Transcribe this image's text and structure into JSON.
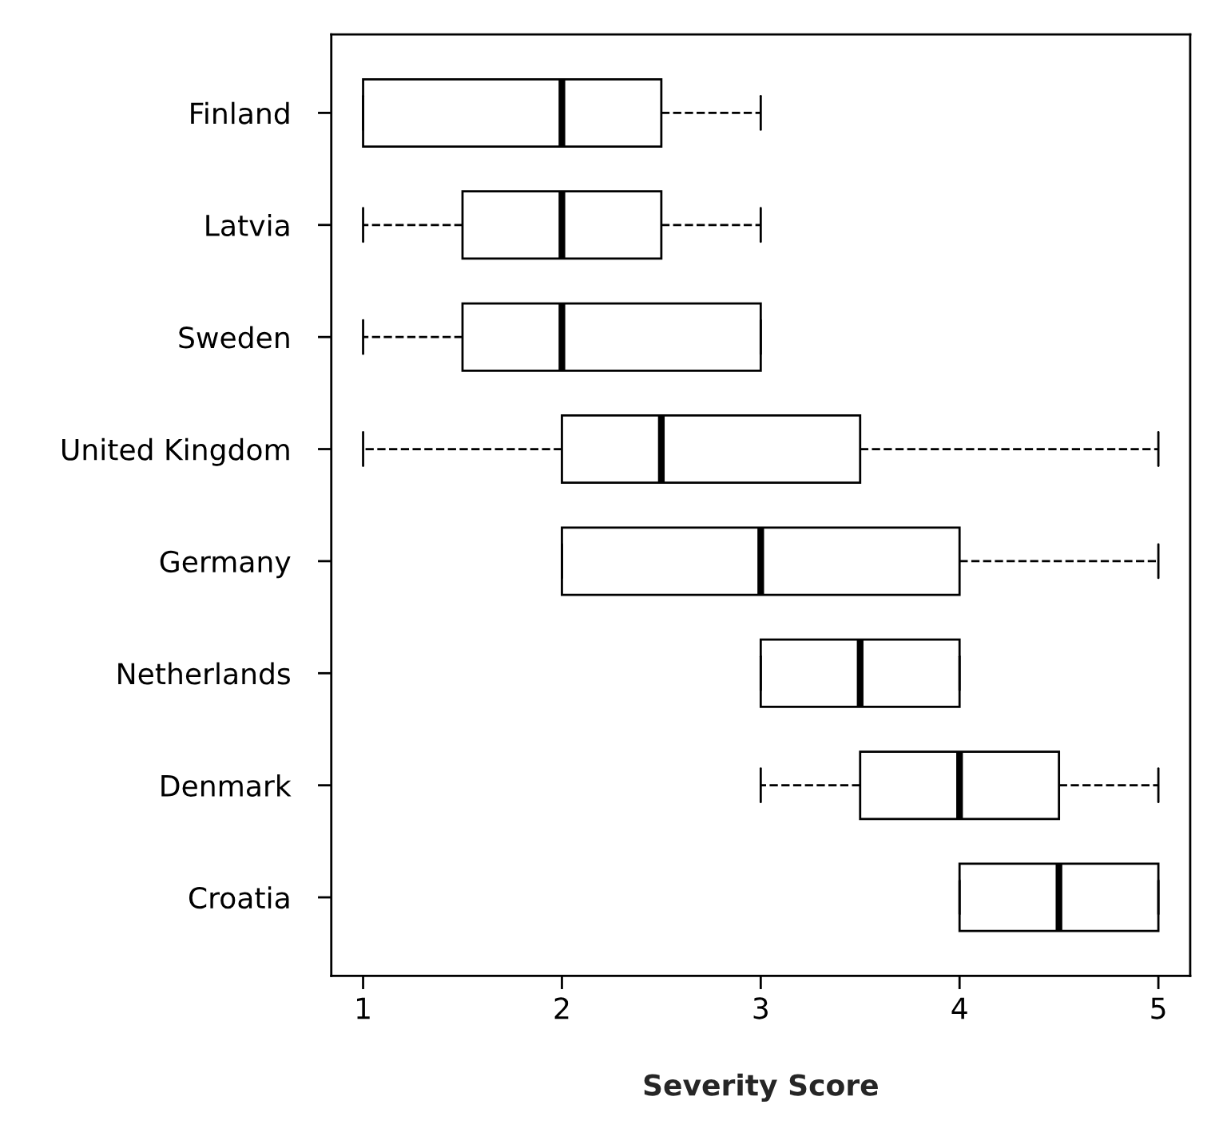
{
  "chart_data": {
    "type": "box",
    "orientation": "horizontal",
    "xlabel": "Severity Score",
    "categories": [
      "Finland",
      "Latvia",
      "Sweden",
      "United Kingdom",
      "Germany",
      "Netherlands",
      "Denmark",
      "Croatia"
    ],
    "boxes": [
      {
        "low": 1,
        "q1": 1,
        "median": 2,
        "q3": 2.5,
        "high": 3
      },
      {
        "low": 1,
        "q1": 1.5,
        "median": 2,
        "q3": 2.5,
        "high": 3
      },
      {
        "low": 1,
        "q1": 1.5,
        "median": 2,
        "q3": 3,
        "high": 3
      },
      {
        "low": 1,
        "q1": 2,
        "median": 2.5,
        "q3": 3.5,
        "high": 5
      },
      {
        "low": 2,
        "q1": 2,
        "median": 3,
        "q3": 4,
        "high": 5
      },
      {
        "low": 3,
        "q1": 3,
        "median": 3.5,
        "q3": 4,
        "high": 4
      },
      {
        "low": 3,
        "q1": 3.5,
        "median": 4,
        "q3": 4.5,
        "high": 5
      },
      {
        "low": 4,
        "q1": 4,
        "median": 4.5,
        "q3": 5,
        "high": 5
      }
    ],
    "xlim": [
      0.84,
      5.16
    ],
    "xticks": [
      1,
      2,
      3,
      4,
      5
    ],
    "line_style": "dashed"
  }
}
